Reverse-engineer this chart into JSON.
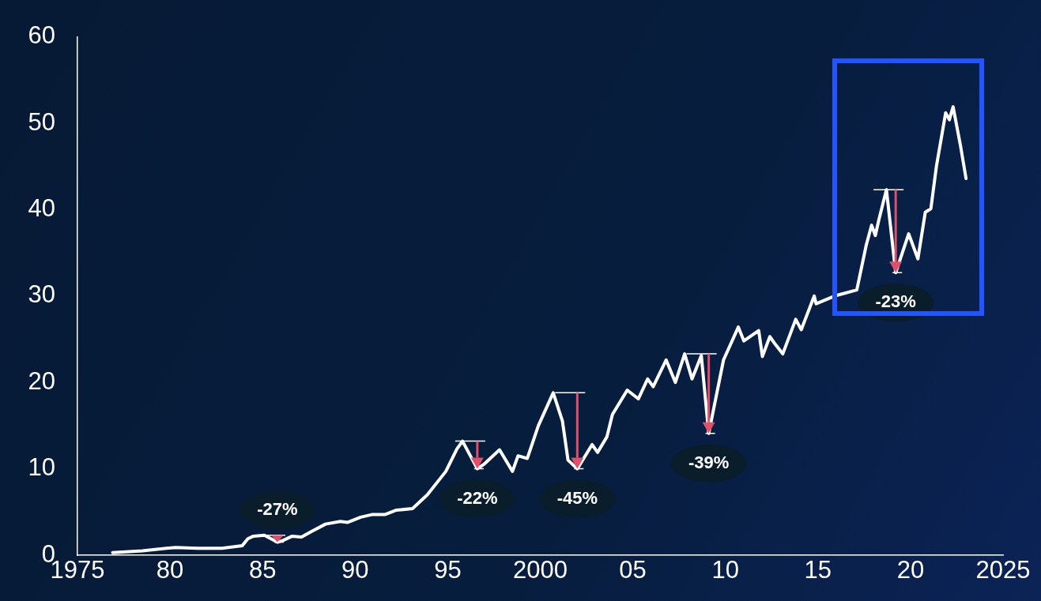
{
  "chart_data": {
    "type": "line",
    "x": [
      1976.9,
      1978.5,
      1979.8,
      1980.3,
      1981.5,
      1982.8,
      1983.9,
      1984.2,
      1984.5,
      1985.1,
      1985.8,
      1986.1,
      1986.6,
      1987.1,
      1987.7,
      1988.4,
      1989.2,
      1989.6,
      1990.3,
      1990.9,
      1991.6,
      1992.2,
      1993.1,
      1993.9,
      1994.9,
      1995.5,
      1995.8,
      1996.2,
      1996.6,
      1997.0,
      1997.8,
      1998.5,
      1998.8,
      1999.3,
      1999.9,
      2000.7,
      2001.2,
      2001.5,
      2002.0,
      2002.8,
      2003.1,
      2003.6,
      2003.9,
      2004.7,
      2005.3,
      2005.8,
      2006.1,
      2006.8,
      2007.3,
      2007.8,
      2008.2,
      2008.7,
      2009.1,
      2009.9,
      2010.7,
      2011.0,
      2011.8,
      2012.0,
      2012.4,
      2012.7,
      2013.1,
      2013.8,
      2014.1,
      2014.8,
      2014.9,
      2015.9,
      2017.1,
      2017.6,
      2017.9,
      2018.1,
      2018.3,
      2018.7,
      2019.2,
      2019.9,
      2020.4,
      2020.8,
      2021.1,
      2021.4,
      2021.9,
      2022.1,
      2022.3,
      2022.7,
      2023.0
    ],
    "series": [
      {
        "color": "#ffffff",
        "values": [
          0.3,
          0.5,
          0.8,
          0.9,
          0.8,
          0.8,
          1.1,
          1.9,
          2.2,
          2.3,
          1.5,
          1.7,
          2.2,
          2.1,
          2.8,
          3.6,
          3.9,
          3.8,
          4.4,
          4.7,
          4.7,
          5.2,
          5.4,
          7.0,
          9.7,
          12.3,
          13.2,
          11.6,
          10.0,
          10.6,
          12.2,
          9.7,
          11.5,
          11.2,
          15.0,
          18.8,
          15.5,
          11.0,
          10.0,
          12.8,
          11.9,
          13.7,
          16.3,
          19.1,
          18.1,
          20.4,
          19.5,
          22.6,
          20.0,
          23.3,
          20.4,
          23.1,
          14.1,
          22.6,
          26.4,
          24.8,
          26.0,
          23.0,
          25.3,
          24.4,
          23.3,
          27.3,
          26.1,
          30.0,
          29.1,
          30.0,
          30.7,
          35.8,
          38.2,
          37.0,
          38.9,
          42.3,
          32.7,
          37.2,
          34.3,
          39.7,
          40.1,
          45.0,
          51.2,
          50.4,
          51.9,
          47.4,
          43.6
        ]
      }
    ],
    "xlim": [
      1975,
      2025
    ],
    "xticks": [
      1975,
      {
        "value": 1980,
        "label": "80"
      },
      {
        "value": 1985,
        "label": "85"
      },
      {
        "value": 1990,
        "label": "90"
      },
      {
        "value": 1995,
        "label": "95"
      },
      2000,
      {
        "value": 2005,
        "label": "05"
      },
      {
        "value": 2010,
        "label": "10"
      },
      {
        "value": 2015,
        "label": "15"
      },
      {
        "value": 2020,
        "label": "20"
      },
      2025
    ],
    "ylim": [
      0,
      60
    ],
    "yticks": [
      0,
      10,
      20,
      30,
      40,
      50,
      60
    ],
    "grid": false,
    "legend": false,
    "marker": "none",
    "line_style": "solid",
    "annotations": [
      {
        "text": "-27%",
        "x": 1985.8,
        "y": 1.5
      },
      {
        "text": "-22%",
        "x": 1996.6,
        "y": 10.0
      },
      {
        "text": "-45%",
        "x": 2002.0,
        "y": 10.0
      },
      {
        "text": "-39%",
        "x": 2009.1,
        "y": 14.1
      },
      {
        "text": "-23%",
        "x": 2019.2,
        "y": 32.7
      }
    ]
  }
}
